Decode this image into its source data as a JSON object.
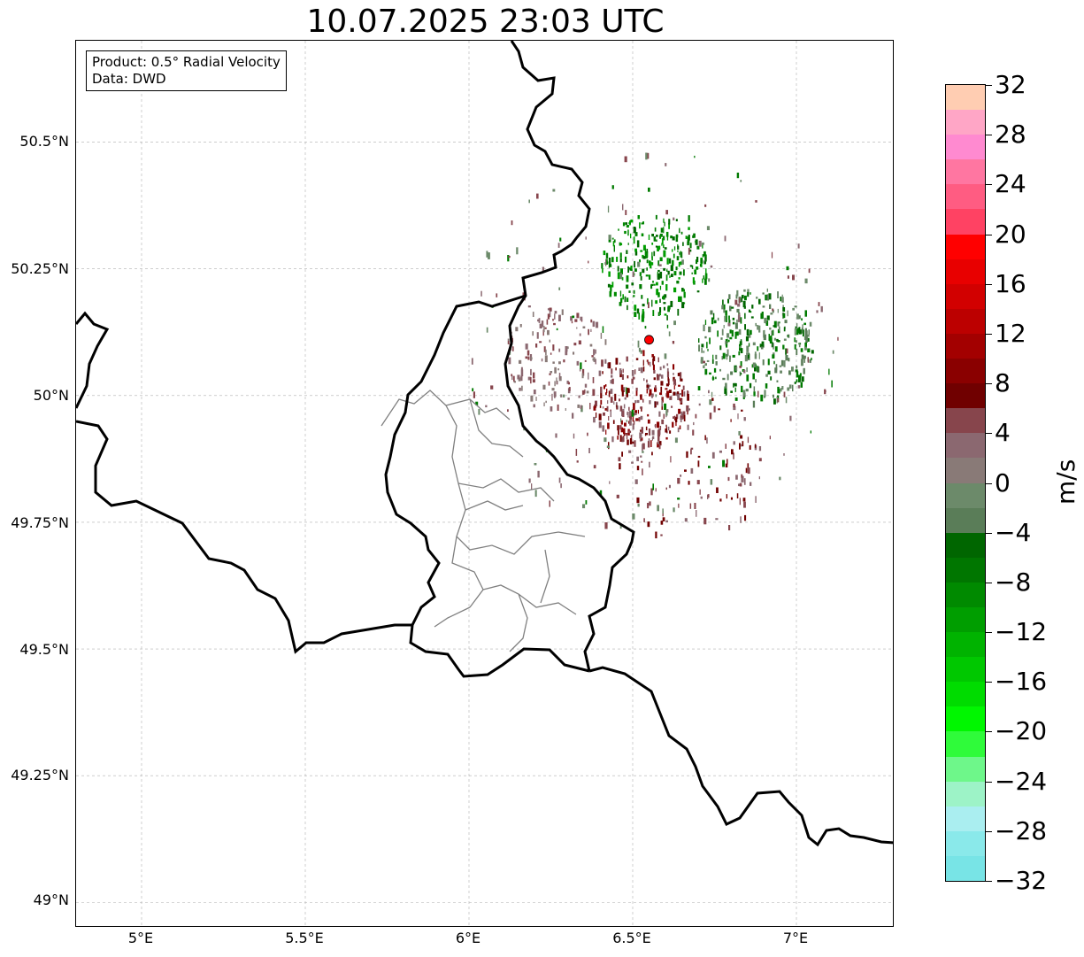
{
  "title": "10.07.2025 23:03 UTC",
  "info": {
    "product": "Product: 0.5° Radial Velocity",
    "source": "Data: DWD"
  },
  "axes": {
    "lat_ticks": [
      "50.5°N",
      "50.25°N",
      "50°N",
      "49.75°N",
      "49.5°N",
      "49.25°N",
      "49°N"
    ],
    "lon_ticks": [
      "5°E",
      "5.5°E",
      "6°E",
      "6.5°E",
      "7°E"
    ],
    "lat_range": [
      48.95,
      50.7
    ],
    "lon_range": [
      4.8,
      7.3
    ],
    "grid": true
  },
  "radar_site": {
    "lat": 50.11,
    "lon": 6.55,
    "color": "#ff0000"
  },
  "colorbar": {
    "unit": "m/s",
    "range": [
      -32,
      32
    ],
    "tick_labels": [
      "32",
      "28",
      "24",
      "20",
      "16",
      "12",
      "8",
      "4",
      "0",
      "−4",
      "−8",
      "−12",
      "−16",
      "−20",
      "−24",
      "−28",
      "−32"
    ],
    "colors_bottom_to_top": [
      "#78e4e6",
      "#8ae9ea",
      "#aaeef0",
      "#9df3c7",
      "#6ef78a",
      "#2ffb3a",
      "#00f700",
      "#00dc00",
      "#00c800",
      "#00b300",
      "#009e00",
      "#008a00",
      "#007600",
      "#006600",
      "#5a7d58",
      "#6c8a6a",
      "#897a77",
      "#8b6870",
      "#87454c",
      "#700000",
      "#8a0000",
      "#a30000",
      "#bc0000",
      "#d20000",
      "#e80000",
      "#ff0000",
      "#ff4263",
      "#ff5c82",
      "#ff76a1",
      "#ff8ad0",
      "#ffa6c6",
      "#ffcdb2"
    ]
  }
}
